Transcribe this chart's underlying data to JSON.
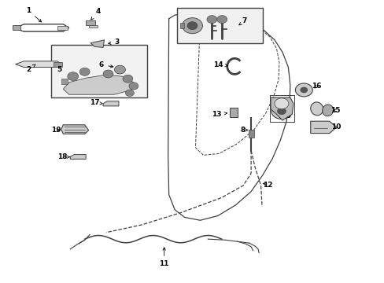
{
  "bg_color": "#ffffff",
  "line_color": "#404040",
  "fig_width": 4.89,
  "fig_height": 3.6,
  "dpi": 100,
  "label_positions": {
    "1": [
      0.075,
      0.895,
      0.13,
      0.875,
      "right"
    ],
    "2": [
      0.075,
      0.72,
      0.09,
      0.705,
      "center"
    ],
    "3": [
      0.305,
      0.8,
      0.29,
      0.79,
      "right"
    ],
    "4": [
      0.255,
      0.895,
      0.235,
      0.875,
      "right"
    ],
    "5": [
      0.155,
      0.66,
      0.145,
      0.645,
      "right"
    ],
    "6": [
      0.265,
      0.7,
      0.255,
      0.715,
      "right"
    ],
    "7": [
      0.62,
      0.87,
      0.635,
      0.865,
      "left"
    ],
    "8": [
      0.62,
      0.52,
      0.61,
      0.51,
      "right"
    ],
    "9": [
      0.72,
      0.535,
      0.735,
      0.535,
      "left"
    ],
    "10": [
      0.84,
      0.51,
      0.855,
      0.51,
      "left"
    ],
    "11": [
      0.43,
      0.08,
      0.43,
      0.065,
      "center"
    ],
    "12": [
      0.67,
      0.33,
      0.685,
      0.32,
      "left"
    ],
    "13": [
      0.555,
      0.555,
      0.54,
      0.555,
      "right"
    ],
    "14": [
      0.56,
      0.71,
      0.545,
      0.715,
      "right"
    ],
    "15": [
      0.84,
      0.57,
      0.855,
      0.57,
      "left"
    ],
    "16": [
      0.795,
      0.64,
      0.81,
      0.65,
      "left"
    ],
    "17": [
      0.255,
      0.595,
      0.24,
      0.595,
      "right"
    ],
    "18": [
      0.215,
      0.415,
      0.2,
      0.415,
      "right"
    ],
    "19": [
      0.195,
      0.5,
      0.18,
      0.5,
      "right"
    ]
  }
}
